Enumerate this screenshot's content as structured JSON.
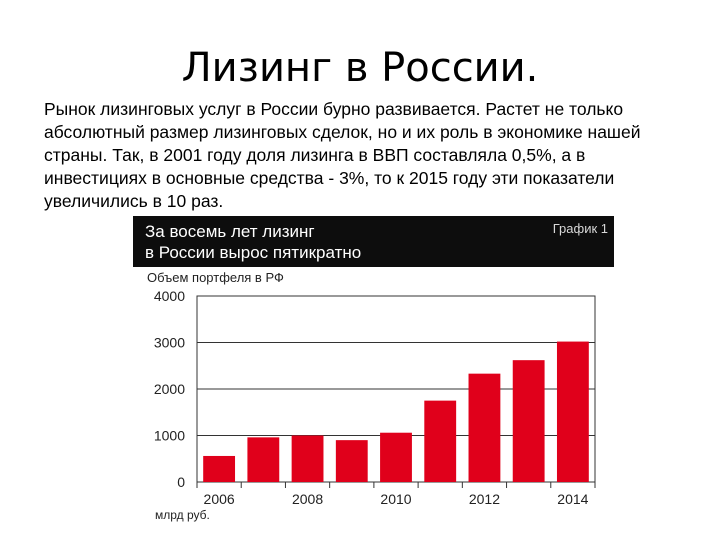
{
  "slide": {
    "title": "Лизинг в России.",
    "body": "Рынок лизинговых услуг в России бурно развивается. Растет не только абсолютный размер лизинговых сделок, но и их роль в экономике нашей страны. Так, в 2001 году доля лизинга в ВВП составляла 0,5%, а в инвестициях в основные средства - 3%, то к 2015 году эти показатели увеличились в 10 раз."
  },
  "chart_header": {
    "headline": "За восемь лет лизинг\nв России вырос пятикратно",
    "badge": "График 1"
  },
  "chart_data": {
    "type": "bar",
    "title": "Объем портфеля в РФ",
    "unit_label": "млрд руб.",
    "categories": [
      "2006",
      "2007",
      "2008",
      "2009",
      "2010",
      "2011",
      "2012",
      "2013",
      "2014"
    ],
    "x_tick_labels": [
      "2006",
      "",
      "2008",
      "",
      "2010",
      "",
      "2012",
      "",
      "2014"
    ],
    "values": [
      560,
      960,
      1000,
      900,
      1060,
      1750,
      2330,
      2620,
      3020
    ],
    "ylim": [
      0,
      4000
    ],
    "yticks": [
      "0",
      "1000",
      "2000",
      "3000",
      "4000"
    ],
    "grid": true,
    "bar_color": "#e0001b"
  }
}
